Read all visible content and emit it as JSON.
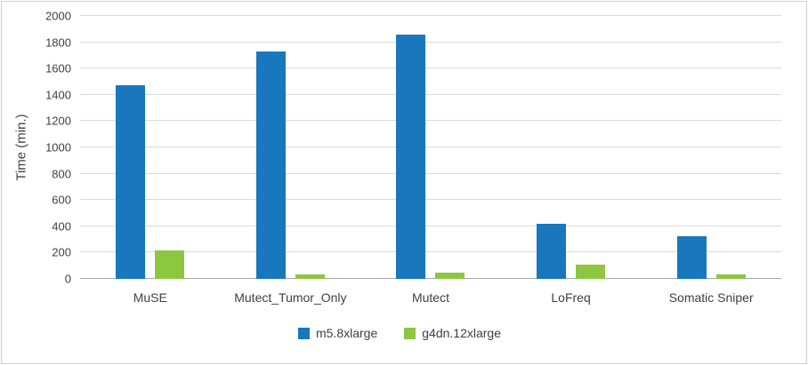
{
  "chart_data": {
    "type": "bar",
    "title": "",
    "xlabel": "",
    "ylabel": "Time (min.)",
    "ylim": [
      0,
      2000
    ],
    "ytick_step": 200,
    "grid": true,
    "legend_position": "bottom",
    "categories": [
      "MuSE",
      "Mutect_Tumor_Only",
      "Mutect",
      "LoFreq",
      "Somatic Sniper"
    ],
    "series": [
      {
        "name": "m5.8xlarge",
        "color": "#1877bd",
        "values": [
          1470,
          1730,
          1860,
          420,
          325
        ]
      },
      {
        "name": "g4dn.12xlarge",
        "color": "#8dc63f",
        "values": [
          215,
          35,
          50,
          105,
          35
        ]
      }
    ],
    "colors": {
      "gridline": "#d9d9d9",
      "axis_line": "#a6a6a6",
      "text": "#3f3f3f",
      "frame_border": "#cfcfcf"
    }
  }
}
